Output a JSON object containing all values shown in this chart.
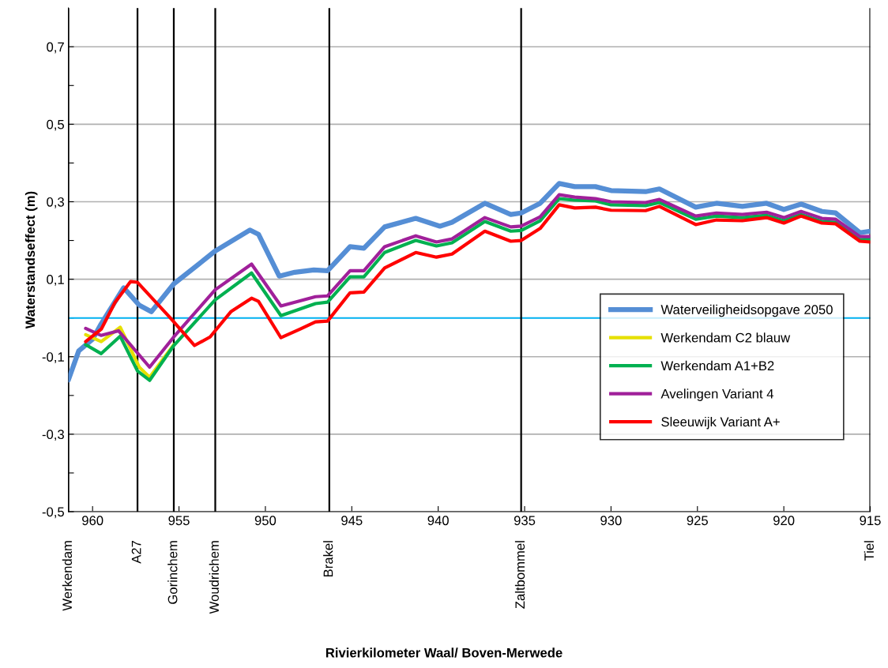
{
  "chart_data": {
    "type": "line",
    "annotations": [
      "Rivierkilometer Waal/ Boven-Merwede"
    ],
    "ylabel": "Waterstandseffect (m)",
    "xlim": [
      961.4,
      915
    ],
    "xticks": [
      960,
      955,
      950,
      945,
      940,
      935,
      930,
      925,
      920,
      915
    ],
    "ylim": [
      -0.5,
      0.8
    ],
    "yticks": [
      {
        "value": -0.5,
        "label": "-0,5"
      },
      {
        "value": -0.4,
        "label": null
      },
      {
        "value": -0.3,
        "label": "-0,3"
      },
      {
        "value": -0.2,
        "label": null
      },
      {
        "value": -0.1,
        "label": "-0,1"
      },
      {
        "value": 0.0,
        "label": null
      },
      {
        "value": 0.1,
        "label": "0,1"
      },
      {
        "value": 0.2,
        "label": null
      },
      {
        "value": 0.3,
        "label": "0,3"
      },
      {
        "value": 0.4,
        "label": null
      },
      {
        "value": 0.5,
        "label": "0,5"
      },
      {
        "value": 0.6,
        "label": null
      },
      {
        "value": 0.7,
        "label": "0,7"
      }
    ],
    "grid": "y",
    "legend": "bottom right",
    "marker": "none",
    "line_style": "solid",
    "ref_lines": [
      {
        "axis": "y",
        "value": 0.0,
        "label": null,
        "color": "#00b0f0"
      },
      {
        "axis": "x",
        "value": 961.4,
        "label": "Werkendam",
        "color": "#000000"
      },
      {
        "axis": "x",
        "value": 957.4,
        "label": "A27",
        "color": "#000000"
      },
      {
        "axis": "x",
        "value": 955.3,
        "label": "Gorinchem",
        "color": "#000000"
      },
      {
        "axis": "x",
        "value": 952.9,
        "label": "Woudrichem",
        "color": "#000000"
      },
      {
        "axis": "x",
        "value": 946.3,
        "label": "Brakel",
        "color": "#000000"
      },
      {
        "axis": "x",
        "value": 935.2,
        "label": "Zaltbommel",
        "color": "#000000"
      },
      {
        "axis": "x",
        "value": 915.0,
        "label": "Tiel",
        "color": "#000000"
      }
    ],
    "series": [
      {
        "name": "Waterveiligheidsopgave 2050",
        "color": "#558ed5",
        "x": [
          961.4,
          960.8,
          960,
          959.5,
          958.2,
          957.3,
          956.6,
          955.3,
          952.9,
          950.9,
          950.4,
          949.2,
          948.3,
          947.2,
          946.4,
          945.1,
          944.3,
          943.1,
          941.3,
          939.9,
          939.2,
          937.3,
          935.8,
          935.2,
          934.1,
          933,
          932.1,
          930.9,
          930,
          928,
          927.2,
          925.1,
          923.9,
          922.4,
          921,
          920,
          919,
          917.8,
          917,
          915.6,
          915
        ],
        "values": [
          -0.16,
          -0.085,
          -0.055,
          -0.015,
          0.078,
          0.033,
          0.016,
          0.088,
          0.173,
          0.227,
          0.216,
          0.108,
          0.118,
          0.124,
          0.122,
          0.184,
          0.18,
          0.235,
          0.257,
          0.237,
          0.247,
          0.296,
          0.267,
          0.271,
          0.296,
          0.347,
          0.339,
          0.339,
          0.329,
          0.326,
          0.333,
          0.286,
          0.296,
          0.288,
          0.296,
          0.28,
          0.294,
          0.275,
          0.271,
          0.22,
          0.224
        ]
      },
      {
        "name": "Werkendam C2 blauw",
        "color": "#e6e000",
        "x": [
          960.4,
          959.5,
          958.4,
          957.3,
          956.7,
          955.3
        ],
        "values": [
          -0.043,
          -0.061,
          -0.024,
          -0.127,
          -0.153,
          -0.069
        ]
      },
      {
        "name": "Werkendam A1+B2",
        "color": "#00b050",
        "x": [
          960.4,
          959.5,
          958.4,
          957.4,
          956.7,
          955.3,
          952.9,
          950.8,
          949.1,
          947.1,
          946.4,
          945.1,
          944.3,
          943.1,
          941.3,
          940.1,
          939.2,
          937.3,
          935.8,
          935.2,
          934.1,
          933,
          932.1,
          930.9,
          930,
          928,
          927.2,
          925.1,
          923.9,
          922.4,
          921,
          920,
          919,
          917.8,
          917,
          915.6,
          915
        ],
        "values": [
          -0.069,
          -0.092,
          -0.047,
          -0.137,
          -0.161,
          -0.071,
          0.047,
          0.116,
          0.006,
          0.037,
          0.041,
          0.106,
          0.106,
          0.169,
          0.2,
          0.186,
          0.194,
          0.249,
          0.224,
          0.226,
          0.251,
          0.308,
          0.304,
          0.302,
          0.292,
          0.29,
          0.298,
          0.255,
          0.263,
          0.259,
          0.265,
          0.251,
          0.267,
          0.249,
          0.247,
          0.202,
          0.204
        ]
      },
      {
        "name": "Avelingen Variant 4",
        "color": "#a0209a",
        "x": [
          960.4,
          959.5,
          958.5,
          956.7,
          955.3,
          952.9,
          950.8,
          949.1,
          947.1,
          946.4,
          945.1,
          944.3,
          943.1,
          941.3,
          940.1,
          939.2,
          937.3,
          935.8,
          935.2,
          934.1,
          933,
          932.1,
          930.9,
          930,
          928,
          927.2,
          925.1,
          923.9,
          922.4,
          921,
          920,
          919,
          917.8,
          917,
          915.6,
          915
        ],
        "values": [
          -0.027,
          -0.045,
          -0.033,
          -0.127,
          -0.049,
          0.073,
          0.139,
          0.031,
          0.055,
          0.057,
          0.122,
          0.122,
          0.184,
          0.212,
          0.196,
          0.204,
          0.259,
          0.235,
          0.237,
          0.261,
          0.318,
          0.312,
          0.308,
          0.3,
          0.298,
          0.306,
          0.263,
          0.271,
          0.267,
          0.273,
          0.259,
          0.275,
          0.257,
          0.255,
          0.21,
          0.21
        ]
      },
      {
        "name": "Sleeuwijk Variant A+",
        "color": "#ff0000",
        "x": [
          960.4,
          959.5,
          958.7,
          957.8,
          957.4,
          955.5,
          954.1,
          953.2,
          952,
          950.8,
          950.4,
          949.1,
          948,
          947.1,
          946.4,
          945.1,
          944.3,
          943.1,
          941.3,
          940.1,
          939.2,
          937.3,
          935.8,
          935.2,
          934.1,
          933,
          932.1,
          930.9,
          930,
          928,
          927.2,
          925.1,
          923.9,
          922.4,
          921,
          920,
          919,
          917.8,
          917,
          915.6,
          915
        ],
        "values": [
          -0.061,
          -0.029,
          0.04,
          0.094,
          0.092,
          0.0,
          -0.071,
          -0.049,
          0.016,
          0.051,
          0.043,
          -0.051,
          -0.029,
          -0.01,
          -0.008,
          0.065,
          0.067,
          0.129,
          0.169,
          0.157,
          0.165,
          0.224,
          0.198,
          0.2,
          0.231,
          0.292,
          0.284,
          0.286,
          0.278,
          0.277,
          0.288,
          0.241,
          0.253,
          0.251,
          0.259,
          0.245,
          0.263,
          0.245,
          0.243,
          0.198,
          0.196
        ]
      }
    ]
  }
}
